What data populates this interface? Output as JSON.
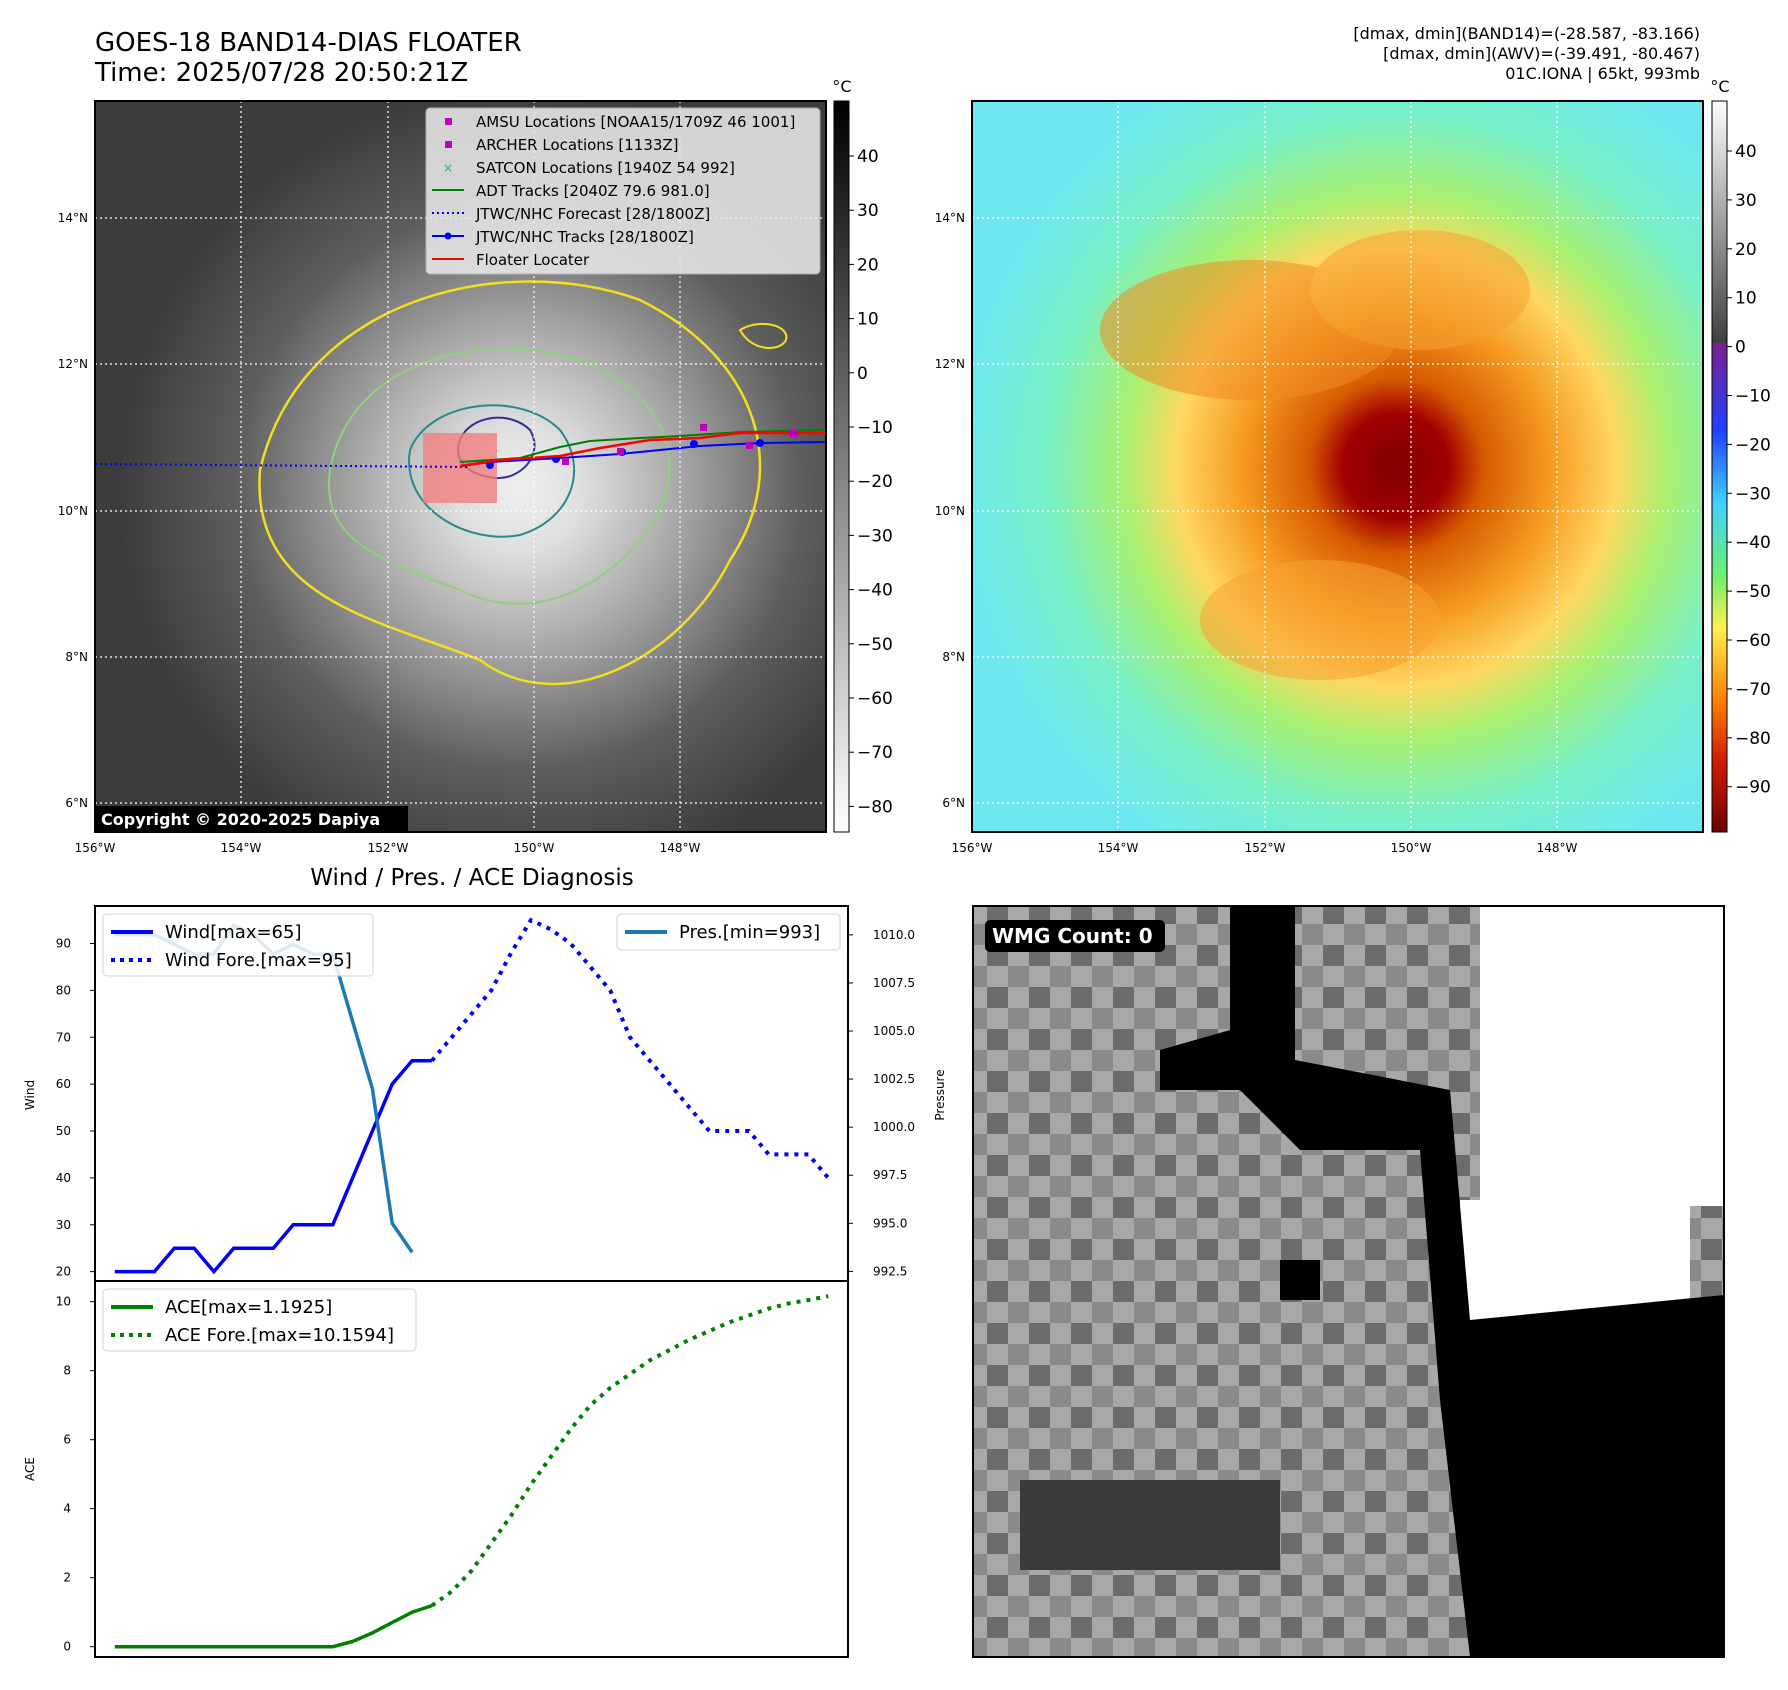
{
  "header": {
    "title_line1": "GOES-18 BAND14-DIAS FLOATER",
    "title_line2": "Time: 2025/07/28 20:50:21Z",
    "right_line1": "[dmax, dmin](BAND14)=(-28.587, -83.166)",
    "right_line2": "[dmax, dmin](AWV)=(-39.491, -80.467)",
    "right_line3": "01C.IONA | 65kt, 993mb"
  },
  "maps": {
    "lon_ticks": [
      "156°W",
      "154°W",
      "152°W",
      "150°W",
      "148°W"
    ],
    "lat_ticks": [
      "14°N",
      "12°N",
      "10°N",
      "8°N",
      "6°N"
    ],
    "copyright": "Copyright © 2020-2025 Dapiya",
    "legend": [
      {
        "label": "AMSU Locations [NOAA15/1709Z 46 1001]",
        "marker": "square",
        "color": "#c000c0"
      },
      {
        "label": "ARCHER Locations [1133Z]",
        "marker": "square",
        "color": "#c000c0"
      },
      {
        "label": "SATCON Locations [1940Z 54 992]",
        "marker": "x",
        "color": "#20b0b0"
      },
      {
        "label": "ADT Tracks [2040Z 79.6 981.0]",
        "marker": "line",
        "color": "#008000"
      },
      {
        "label": "JTWC/NHC Forecast [28/1800Z]",
        "marker": "dotted",
        "color": "#0000ff"
      },
      {
        "label": "JTWC/NHC Tracks [28/1800Z]",
        "marker": "line-dot",
        "color": "#0000ff"
      },
      {
        "label": "Floater Locater",
        "marker": "line",
        "color": "#ff0000"
      }
    ],
    "left_colorbar": {
      "unit": "°C",
      "ticks": [
        "40",
        "30",
        "20",
        "10",
        "0",
        "−10",
        "−20",
        "−30",
        "−40",
        "−50",
        "−60",
        "−70",
        "−80"
      ]
    },
    "right_colorbar": {
      "unit": "°C",
      "ticks": [
        "40",
        "30",
        "20",
        "10",
        "0",
        "−10",
        "−20",
        "−30",
        "−40",
        "−50",
        "−60",
        "−70",
        "−80",
        "−90"
      ]
    }
  },
  "wmg": {
    "label": "WMG Count: 0"
  },
  "chart_data": [
    {
      "type": "line",
      "title": "Wind / Pres. / ACE Diagnosis",
      "ylabel": "Wind",
      "y2label": "Pressure",
      "ylim": [
        18,
        98
      ],
      "y2lim": [
        992.0,
        1011.5
      ],
      "yticks": [
        20,
        30,
        40,
        50,
        60,
        70,
        80,
        90
      ],
      "y2ticks": [
        "992.5",
        "995.0",
        "997.5",
        "1000.0",
        "1002.5",
        "1005.0",
        "1007.5",
        "1010.0"
      ],
      "xlim": [
        -1,
        37
      ],
      "series": [
        {
          "name": "Wind[max=65]",
          "style": "solid",
          "color": "#0000ff",
          "axis": "left",
          "x": [
            0,
            1,
            2,
            3,
            4,
            5,
            6,
            7,
            8,
            9,
            10,
            11,
            12,
            13,
            14,
            15,
            16
          ],
          "values": [
            20,
            20,
            20,
            25,
            25,
            20,
            25,
            25,
            25,
            30,
            30,
            30,
            40,
            50,
            60,
            65,
            65
          ]
        },
        {
          "name": "Wind Fore.[max=95]",
          "style": "dotted",
          "color": "#0000ff",
          "axis": "left",
          "x": [
            16,
            17,
            18,
            19,
            20,
            21,
            22,
            23,
            24,
            25,
            26,
            27,
            28,
            29,
            30,
            31,
            32,
            33,
            34,
            35,
            36
          ],
          "values": [
            65,
            70,
            75,
            80,
            88,
            95,
            93,
            90,
            85,
            80,
            70,
            65,
            60,
            55,
            50,
            50,
            50,
            45,
            45,
            45,
            40
          ]
        },
        {
          "name": "Pres.[min=993]",
          "style": "solid",
          "color": "#1f77b4",
          "axis": "right",
          "x": [
            0,
            1,
            2,
            3,
            4,
            5,
            6,
            7,
            8,
            9,
            10,
            11,
            12,
            13,
            14,
            15
          ],
          "values": [
            1010,
            1010,
            1010,
            1009.5,
            1009,
            1009,
            1010.5,
            1010,
            1009,
            1009.5,
            1009,
            1009,
            1005.5,
            1002,
            995,
            993.5
          ]
        }
      ]
    },
    {
      "type": "line",
      "ylabel": "ACE",
      "ylim": [
        -0.3,
        10.6
      ],
      "yticks": [
        0,
        2,
        4,
        6,
        8,
        10
      ],
      "xlim": [
        -1,
        37
      ],
      "series": [
        {
          "name": "ACE[max=1.1925]",
          "style": "solid",
          "color": "#008000",
          "x": [
            0,
            1,
            2,
            3,
            4,
            5,
            6,
            7,
            8,
            9,
            10,
            11,
            12,
            13,
            14,
            15,
            16
          ],
          "values": [
            0,
            0,
            0,
            0,
            0,
            0,
            0,
            0,
            0,
            0,
            0,
            0,
            0.15,
            0.4,
            0.7,
            1.0,
            1.19
          ]
        },
        {
          "name": "ACE Fore.[max=10.1594]",
          "style": "dotted",
          "color": "#008000",
          "x": [
            16,
            17,
            18,
            19,
            20,
            21,
            22,
            23,
            24,
            25,
            26,
            27,
            28,
            29,
            30,
            31,
            32,
            33,
            34,
            35,
            36
          ],
          "values": [
            1.19,
            1.6,
            2.2,
            3.0,
            3.8,
            4.7,
            5.5,
            6.3,
            7.0,
            7.5,
            7.9,
            8.3,
            8.6,
            8.9,
            9.15,
            9.4,
            9.6,
            9.8,
            9.95,
            10.05,
            10.16
          ]
        }
      ]
    }
  ]
}
